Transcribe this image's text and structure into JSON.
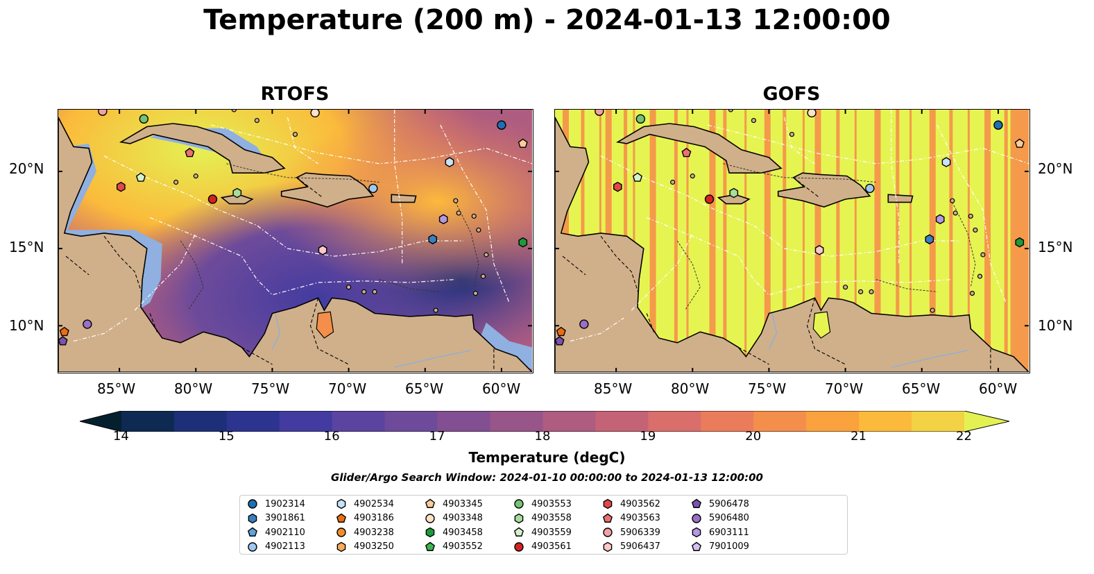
{
  "title": "Temperature (200 m) - 2024-01-13 12:00:00",
  "panels": [
    {
      "name": "RTOFS"
    },
    {
      "name": "GOFS"
    }
  ],
  "axes": {
    "lon_ticks": [
      "85°W",
      "80°W",
      "75°W",
      "70°W",
      "65°W",
      "60°W"
    ],
    "lat_ticks": [
      "20°N",
      "15°N",
      "10°N"
    ],
    "lon_range": [
      -89,
      -58
    ],
    "lat_range": [
      7,
      24
    ]
  },
  "colorbar": {
    "label": "Temperature (degC)",
    "ticks": [
      "14",
      "15",
      "16",
      "17",
      "18",
      "19",
      "20",
      "21",
      "22"
    ],
    "min": 14,
    "max": 22,
    "extend": "both",
    "colors": [
      "#04202e",
      "#0e2a52",
      "#1c2f78",
      "#2c3490",
      "#433ba0",
      "#5b44a0",
      "#6e4b9a",
      "#824f92",
      "#97558a",
      "#ae5c80",
      "#c56376",
      "#d96e6b",
      "#ea7c5c",
      "#f48f4b",
      "#f9a23e",
      "#fbba3b",
      "#f3d245",
      "#e4f153"
    ]
  },
  "search_window": "Glider/Argo Search Window: 2024-01-10 00:00:00 to 2024-01-13 12:00:00",
  "legend": [
    {
      "id": "1902314",
      "marker": "circle",
      "color": "#1f6fb4"
    },
    {
      "id": "3901861",
      "marker": "hexagon",
      "color": "#3a7fc0"
    },
    {
      "id": "4902110",
      "marker": "pentagon",
      "color": "#5fa2dc"
    },
    {
      "id": "4902113",
      "marker": "circle",
      "color": "#9fc8f0"
    },
    {
      "id": "4902534",
      "marker": "hexagon",
      "color": "#c7e3fa"
    },
    {
      "id": "4903186",
      "marker": "pentagon",
      "color": "#ee6c10"
    },
    {
      "id": "4903238",
      "marker": "circle",
      "color": "#f58c2a"
    },
    {
      "id": "4903250",
      "marker": "hexagon",
      "color": "#f9ab5c"
    },
    {
      "id": "4903345",
      "marker": "pentagon",
      "color": "#fbcb98"
    },
    {
      "id": "4903348",
      "marker": "circle",
      "color": "#fde1c6"
    },
    {
      "id": "4903458",
      "marker": "hexagon",
      "color": "#1e9a3a"
    },
    {
      "id": "4903552",
      "marker": "pentagon",
      "color": "#3fb54e"
    },
    {
      "id": "4903553",
      "marker": "circle",
      "color": "#74c476"
    },
    {
      "id": "4903558",
      "marker": "hexagon",
      "color": "#a6dd9a"
    },
    {
      "id": "4903559",
      "marker": "pentagon",
      "color": "#d4f2cc"
    },
    {
      "id": "4903561",
      "marker": "circle",
      "color": "#d42222"
    },
    {
      "id": "4903562",
      "marker": "hexagon",
      "color": "#e04848"
    },
    {
      "id": "4903563",
      "marker": "pentagon",
      "color": "#eb7070"
    },
    {
      "id": "5906339",
      "marker": "circle",
      "color": "#f4a0a0"
    },
    {
      "id": "5906437",
      "marker": "hexagon",
      "color": "#fac8c8"
    },
    {
      "id": "5906478",
      "marker": "pentagon",
      "color": "#7b52ad"
    },
    {
      "id": "5906480",
      "marker": "circle",
      "color": "#9a6fc8"
    },
    {
      "id": "6903111",
      "marker": "hexagon",
      "color": "#b797e0"
    },
    {
      "id": "7901009",
      "marker": "pentagon",
      "color": "#d6bff2"
    }
  ],
  "floats": [
    {
      "id": "1902314",
      "lon": -60.0,
      "lat": 23.0
    },
    {
      "id": "3901861",
      "lon": -64.5,
      "lat": 15.6
    },
    {
      "id": "4902113",
      "lon": -68.4,
      "lat": 18.9
    },
    {
      "id": "4902534",
      "lon": -63.4,
      "lat": 20.6
    },
    {
      "id": "4903186",
      "lon": -88.6,
      "lat": 9.6
    },
    {
      "id": "4903345",
      "lon": -58.6,
      "lat": 21.8
    },
    {
      "id": "4903348",
      "lon": -72.2,
      "lat": 23.8
    },
    {
      "id": "4903458",
      "lon": -58.6,
      "lat": 15.4
    },
    {
      "id": "4903553",
      "lon": -83.4,
      "lat": 23.4
    },
    {
      "id": "4903558",
      "lon": -77.3,
      "lat": 18.6
    },
    {
      "id": "4903559",
      "lon": -83.6,
      "lat": 19.6
    },
    {
      "id": "4903561",
      "lon": -78.9,
      "lat": 18.2
    },
    {
      "id": "4903562",
      "lon": -84.9,
      "lat": 19.0
    },
    {
      "id": "4903563",
      "lon": -80.4,
      "lat": 21.2
    },
    {
      "id": "5906339",
      "lon": -86.1,
      "lat": 23.9
    },
    {
      "id": "5906437",
      "lon": -71.7,
      "lat": 14.9
    },
    {
      "id": "5906478",
      "lon": -88.7,
      "lat": 9.0
    },
    {
      "id": "5906480",
      "lon": -87.1,
      "lat": 10.1
    },
    {
      "id": "6903111",
      "lon": -63.8,
      "lat": 16.9
    }
  ],
  "colors": {
    "land": "#d0b08a",
    "shelf": "#8fb0e0",
    "gofs_yellow": "#e6f452",
    "gofs_orange": "#f49a4a"
  }
}
